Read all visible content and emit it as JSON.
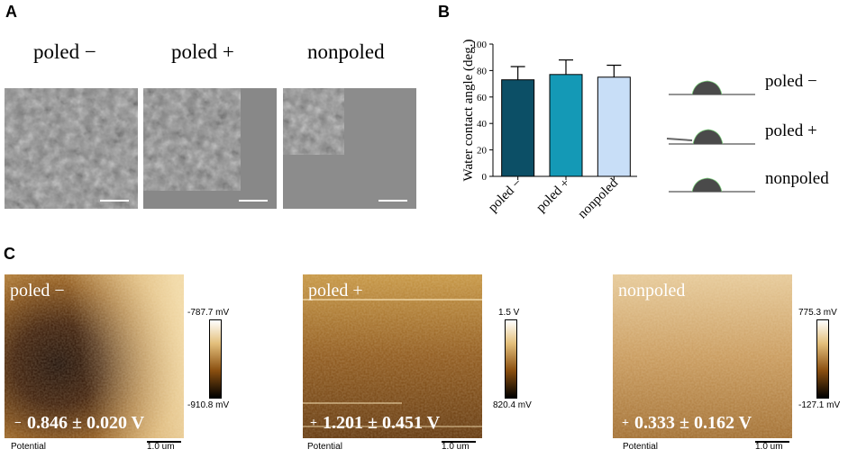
{
  "panels": {
    "a": "A",
    "b": "B",
    "c": "C"
  },
  "sem": [
    {
      "label": "poled −"
    },
    {
      "label": "poled +"
    },
    {
      "label": "nonpoled"
    }
  ],
  "chart_data": {
    "type": "bar",
    "title": "",
    "ylabel": "Water contact angle (deg.)",
    "xlabel": "",
    "categories": [
      "poled −",
      "poled +",
      "nonpoled"
    ],
    "values": [
      73,
      77,
      75
    ],
    "errors": [
      10,
      11,
      9
    ],
    "ylim": [
      0,
      100
    ],
    "yticks": [
      0,
      20,
      40,
      60,
      80,
      100
    ],
    "colors": [
      "#0c4f66",
      "#1499b6",
      "#c8def7"
    ]
  },
  "droplets": [
    {
      "label": "poled −"
    },
    {
      "label": "poled +"
    },
    {
      "label": "nonpoled"
    }
  ],
  "afm": [
    {
      "title": "poled −",
      "max": "-787.7 mV",
      "min": "-910.8 mV",
      "sign": "−",
      "value": "0.846 ± 0.020 V",
      "potential": "Potential",
      "scale": "1.0 um"
    },
    {
      "title": "poled +",
      "max": "1.5 V",
      "min": "820.4 mV",
      "sign": "+",
      "value": "1.201 ± 0.451 V",
      "potential": "Potential",
      "scale": "1.0 um"
    },
    {
      "title": "nonpoled",
      "max": "775.3 mV",
      "min": "-127.1 mV",
      "sign": "+",
      "value": "0.333 ± 0.162 V",
      "potential": "Potential",
      "scale": "1.0 um"
    }
  ]
}
